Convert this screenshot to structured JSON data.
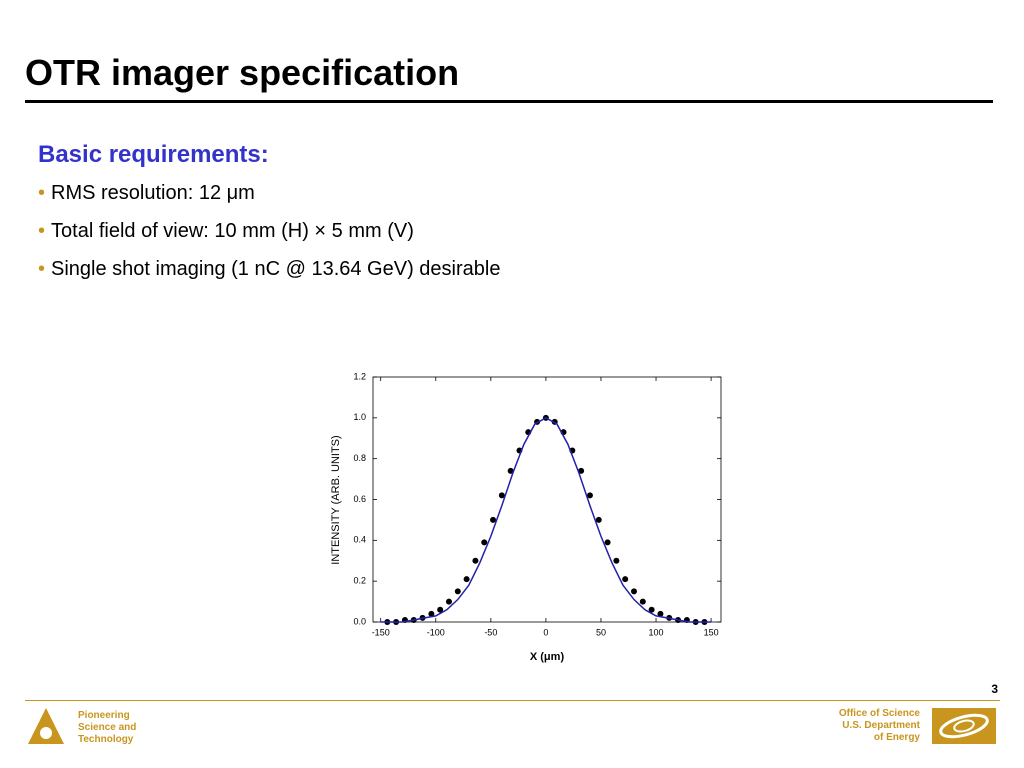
{
  "header": {
    "title": "OTR imager specification"
  },
  "content": {
    "heading": "Basic requirements:",
    "bullets": [
      "RMS resolution: 12 μm",
      "Total field of view: 10 mm (H) × 5 mm (V)",
      "Single shot imaging (1 nC @ 13.64 GeV) desirable"
    ]
  },
  "chart_data": {
    "type": "scatter",
    "x_label": "X (μm)",
    "y_label": "INTENSITY (ARB. UNITS)",
    "xlim": [
      -157,
      159
    ],
    "ylim": [
      0,
      1.2
    ],
    "xticks": [
      -150,
      -100,
      -50,
      0,
      50,
      100,
      150
    ],
    "yticks": [
      {
        "value": 0,
        "label": "0.0"
      },
      0.2,
      0.4,
      0.6,
      0.8,
      {
        "value": 1,
        "label": "1.0"
      },
      1.2
    ],
    "grid": false,
    "series": [
      {
        "type": "scatter",
        "color": "#000000",
        "x": [
          -144,
          -136,
          -128,
          -120,
          -112,
          -104,
          -96,
          -88,
          -80,
          -72,
          -64,
          -56,
          -48,
          -40,
          -32,
          -24,
          -16,
          -8,
          0,
          8,
          16,
          24,
          32,
          40,
          48,
          56,
          64,
          72,
          80,
          88,
          96,
          104,
          112,
          120,
          128,
          136,
          144
        ],
        "values": [
          0,
          0,
          0.01,
          0.01,
          0.02,
          0.04,
          0.06,
          0.1,
          0.15,
          0.21,
          0.3,
          0.39,
          0.5,
          0.62,
          0.74,
          0.84,
          0.93,
          0.98,
          1,
          0.98,
          0.93,
          0.84,
          0.74,
          0.62,
          0.5,
          0.39,
          0.3,
          0.21,
          0.15,
          0.1,
          0.06,
          0.04,
          0.02,
          0.01,
          0.01,
          0,
          0
        ]
      },
      {
        "type": "line",
        "color": "#2222aa",
        "x": [
          -150,
          -140,
          -130,
          -120,
          -110,
          -100,
          -90,
          -80,
          -70,
          -60,
          -50,
          -40,
          -30,
          -20,
          -10,
          0,
          10,
          20,
          30,
          40,
          50,
          60,
          70,
          80,
          90,
          100,
          110,
          120,
          130,
          140,
          150
        ],
        "values": [
          0,
          0,
          0,
          0.01,
          0.02,
          0.03,
          0.06,
          0.11,
          0.18,
          0.29,
          0.42,
          0.57,
          0.73,
          0.87,
          0.97,
          1,
          0.97,
          0.87,
          0.73,
          0.57,
          0.42,
          0.29,
          0.18,
          0.11,
          0.06,
          0.03,
          0.02,
          0.01,
          0,
          0,
          0
        ]
      }
    ]
  },
  "footer": {
    "page": "3",
    "left": [
      "Pioneering",
      "Science and",
      "Technology"
    ],
    "right": [
      "Office of Science",
      "U.S. Department",
      "of Energy"
    ]
  }
}
